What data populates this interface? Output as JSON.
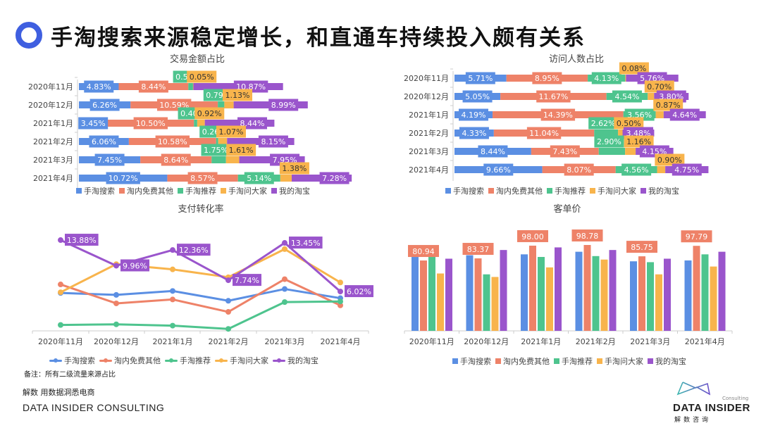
{
  "page": {
    "title": "手淘搜索来源稳定增长，和直通车持续投入颇有关系",
    "note": "备注：所有二级流量来源占比",
    "footer_cn": "解数 用数据洞悉电商",
    "footer_en": "DATA INSIDER CONSULTING",
    "logo": {
      "consulting": "Consulting",
      "main": "DATA INSIDER",
      "sub": "解数咨询"
    }
  },
  "colors": {
    "手淘搜索": "#5b8fe3",
    "淘内免费其他": "#ee8268",
    "手淘推荐": "#4ec48e",
    "手淘问大家": "#f8b44c",
    "我的淘宝": "#9a55cc",
    "accent": "#3f5fe0"
  },
  "legend": [
    "手淘搜索",
    "淘内免费其他",
    "手淘推荐",
    "手淘问大家",
    "我的淘宝"
  ],
  "chart_data": [
    {
      "type": "bar",
      "orientation": "horizontal-stacked",
      "title": "交易金额占比",
      "categories": [
        "2020年11月",
        "2020年12月",
        "2021年1月",
        "2021年2月",
        "2021年3月",
        "2021年4月"
      ],
      "series": [
        {
          "name": "手淘搜索",
          "values": [
            4.83,
            6.26,
            3.45,
            6.06,
            7.45,
            10.72
          ]
        },
        {
          "name": "淘内免费其他",
          "values": [
            8.44,
            10.59,
            10.5,
            10.58,
            8.64,
            8.57
          ]
        },
        {
          "name": "手淘推荐",
          "values": [
            0.57,
            0.79,
            0.4,
            0.26,
            1.75,
            5.14
          ]
        },
        {
          "name": "手淘问大家",
          "values": [
            0.05,
            1.13,
            0.92,
            1.07,
            1.61,
            1.38
          ]
        },
        {
          "name": "我的淘宝",
          "values": [
            10.87,
            8.99,
            8.44,
            8.15,
            7.95,
            7.28
          ]
        }
      ],
      "unit": "%",
      "legend_position": "bottom"
    },
    {
      "type": "bar",
      "orientation": "horizontal-stacked",
      "title": "访问人数占比",
      "categories": [
        "2020年11月",
        "2020年12月",
        "2021年1月",
        "2021年2月",
        "2021年3月",
        "2021年4月"
      ],
      "series": [
        {
          "name": "手淘搜索",
          "values": [
            5.71,
            5.05,
            4.19,
            4.33,
            8.44,
            9.66
          ]
        },
        {
          "name": "淘内免费其他",
          "values": [
            8.95,
            11.67,
            14.39,
            11.04,
            7.43,
            8.07
          ]
        },
        {
          "name": "手淘推荐",
          "values": [
            4.13,
            4.54,
            3.56,
            2.62,
            2.9,
            4.56
          ]
        },
        {
          "name": "手淘问大家",
          "values": [
            0.08,
            0.7,
            0.87,
            0.5,
            1.16,
            0.9
          ]
        },
        {
          "name": "我的淘宝",
          "values": [
            5.76,
            3.8,
            4.64,
            3.48,
            4.15,
            4.75
          ]
        }
      ],
      "unit": "%",
      "legend_position": "bottom"
    },
    {
      "type": "line",
      "title": "支付转化率",
      "categories": [
        "2020年11月",
        "2020年12月",
        "2021年1月",
        "2021年2月",
        "2021年3月",
        "2021年4月"
      ],
      "series": [
        {
          "name": "手淘搜索",
          "values": [
            5.8,
            5.5,
            6.1,
            4.6,
            6.4,
            5.0
          ]
        },
        {
          "name": "淘内免费其他",
          "values": [
            7.1,
            4.2,
            4.8,
            2.9,
            7.9,
            3.9
          ]
        },
        {
          "name": "手淘推荐",
          "values": [
            0.9,
            1.0,
            0.8,
            0.3,
            4.4,
            4.5
          ]
        },
        {
          "name": "手淘问大家",
          "values": [
            5.9,
            10.2,
            9.4,
            8.2,
            12.5,
            7.4
          ]
        },
        {
          "name": "我的淘宝",
          "values": [
            13.88,
            9.96,
            12.36,
            7.74,
            13.45,
            6.02
          ]
        }
      ],
      "labeled_series": "我的淘宝",
      "labels": [
        "13.88%",
        "9.96%",
        "12.36%",
        "7.74%",
        "13.45%",
        "6.02%"
      ],
      "unit": "%",
      "ylim": [
        0,
        15
      ],
      "grid": false,
      "legend_position": "bottom"
    },
    {
      "type": "bar",
      "orientation": "vertical-grouped",
      "title": "客单价",
      "categories": [
        "2020年11月",
        "2020年12月",
        "2021年1月",
        "2021年2月",
        "2021年3月",
        "2021年4月"
      ],
      "series": [
        {
          "name": "手淘搜索",
          "values": [
            85,
            87,
            88,
            91,
            80,
            81
          ]
        },
        {
          "name": "淘内免费其他",
          "values": [
            80.94,
            83.37,
            98.0,
            98.78,
            85.75,
            97.79
          ]
        },
        {
          "name": "手淘推荐",
          "values": [
            85,
            65,
            85,
            86,
            79,
            88
          ]
        },
        {
          "name": "手淘问大家",
          "values": [
            66,
            62,
            73,
            82,
            65,
            74
          ]
        },
        {
          "name": "我的淘宝",
          "values": [
            83,
            93,
            96,
            93,
            83,
            91
          ]
        }
      ],
      "labeled_series": "淘内免费其他",
      "labels": [
        "80.94",
        "83.37",
        "98.00",
        "98.78",
        "85.75",
        "97.79"
      ],
      "ylim": [
        0,
        110
      ],
      "grid": false,
      "legend_position": "bottom"
    }
  ]
}
